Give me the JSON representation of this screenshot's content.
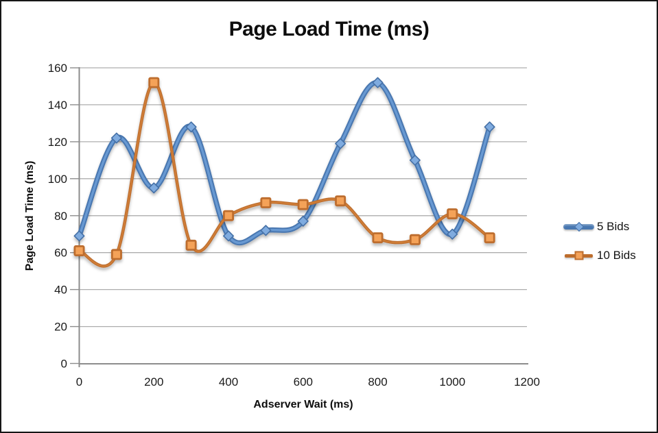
{
  "window": {
    "background": "#ffffff",
    "border_color": "#161616"
  },
  "chart_data": {
    "type": "line",
    "title": "Page Load Time (ms)",
    "xlabel": "Adserver Wait (ms)",
    "ylabel": "Page Load Time (ms)",
    "x": [
      0,
      100,
      200,
      300,
      400,
      500,
      600,
      700,
      800,
      900,
      1000,
      1100
    ],
    "series": [
      {
        "name": "5 Bids",
        "values": [
          69,
          122,
          95,
          128,
          69,
          72,
          77,
          119,
          152,
          110,
          70,
          128
        ],
        "marker": "diamond",
        "line_color": "#4877b0",
        "line_highlight": "#6f9fd8",
        "marker_fill": "#7fabdf",
        "marker_stroke": "#4470a6",
        "line_width": 7.5
      },
      {
        "name": "10 Bids",
        "values": [
          61,
          59,
          152,
          64,
          80,
          87,
          86,
          88,
          68,
          67,
          81,
          68
        ],
        "marker": "square",
        "line_color": "#bd6d2d",
        "line_highlight": "#d4813a",
        "marker_fill": "#f4a259",
        "marker_stroke": "#bd6d2d",
        "line_width": 4.5
      }
    ],
    "xlim": [
      0,
      1200
    ],
    "ylim": [
      0,
      160
    ],
    "x_ticks": [
      0,
      200,
      400,
      600,
      800,
      1000,
      1200
    ],
    "y_ticks": [
      0,
      20,
      40,
      60,
      80,
      100,
      120,
      140,
      160
    ],
    "grid": "horizontal",
    "smooth_lines": true,
    "legend_position": "right",
    "colors": {
      "gridline": "#adadad",
      "axis": "#8c8c8c",
      "tick_text": "#1a1a1a"
    }
  }
}
